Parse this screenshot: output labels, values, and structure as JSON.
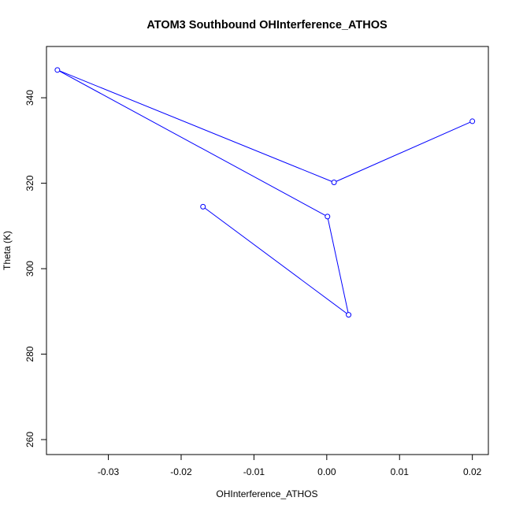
{
  "chart_data": {
    "type": "line",
    "title": "ATOM3 Southbound OHInterference_ATHOS",
    "xlabel": "OHInterference_ATHOS",
    "ylabel": "Theta (K)",
    "xlim": [
      -0.0385,
      0.0222
    ],
    "ylim": [
      256.5,
      352
    ],
    "x_ticks": [
      -0.03,
      -0.02,
      -0.01,
      0.0,
      0.01,
      0.02
    ],
    "x_tick_labels": [
      "-0.03",
      "-0.02",
      "-0.01",
      "0.00",
      "0.01",
      "0.02"
    ],
    "y_ticks": [
      260,
      280,
      300,
      320,
      340
    ],
    "y_tick_labels": [
      "260",
      "280",
      "300",
      "320",
      "340"
    ],
    "grid": false,
    "legend": "none",
    "series": [
      {
        "color": "#0000ff",
        "marker": "open-circle",
        "x": [
          -0.017,
          0.003,
          0.0001,
          -0.037,
          0.001,
          0.02
        ],
        "y": [
          314.5,
          289.2,
          312.2,
          346.5,
          320.2,
          334.5
        ]
      }
    ]
  }
}
